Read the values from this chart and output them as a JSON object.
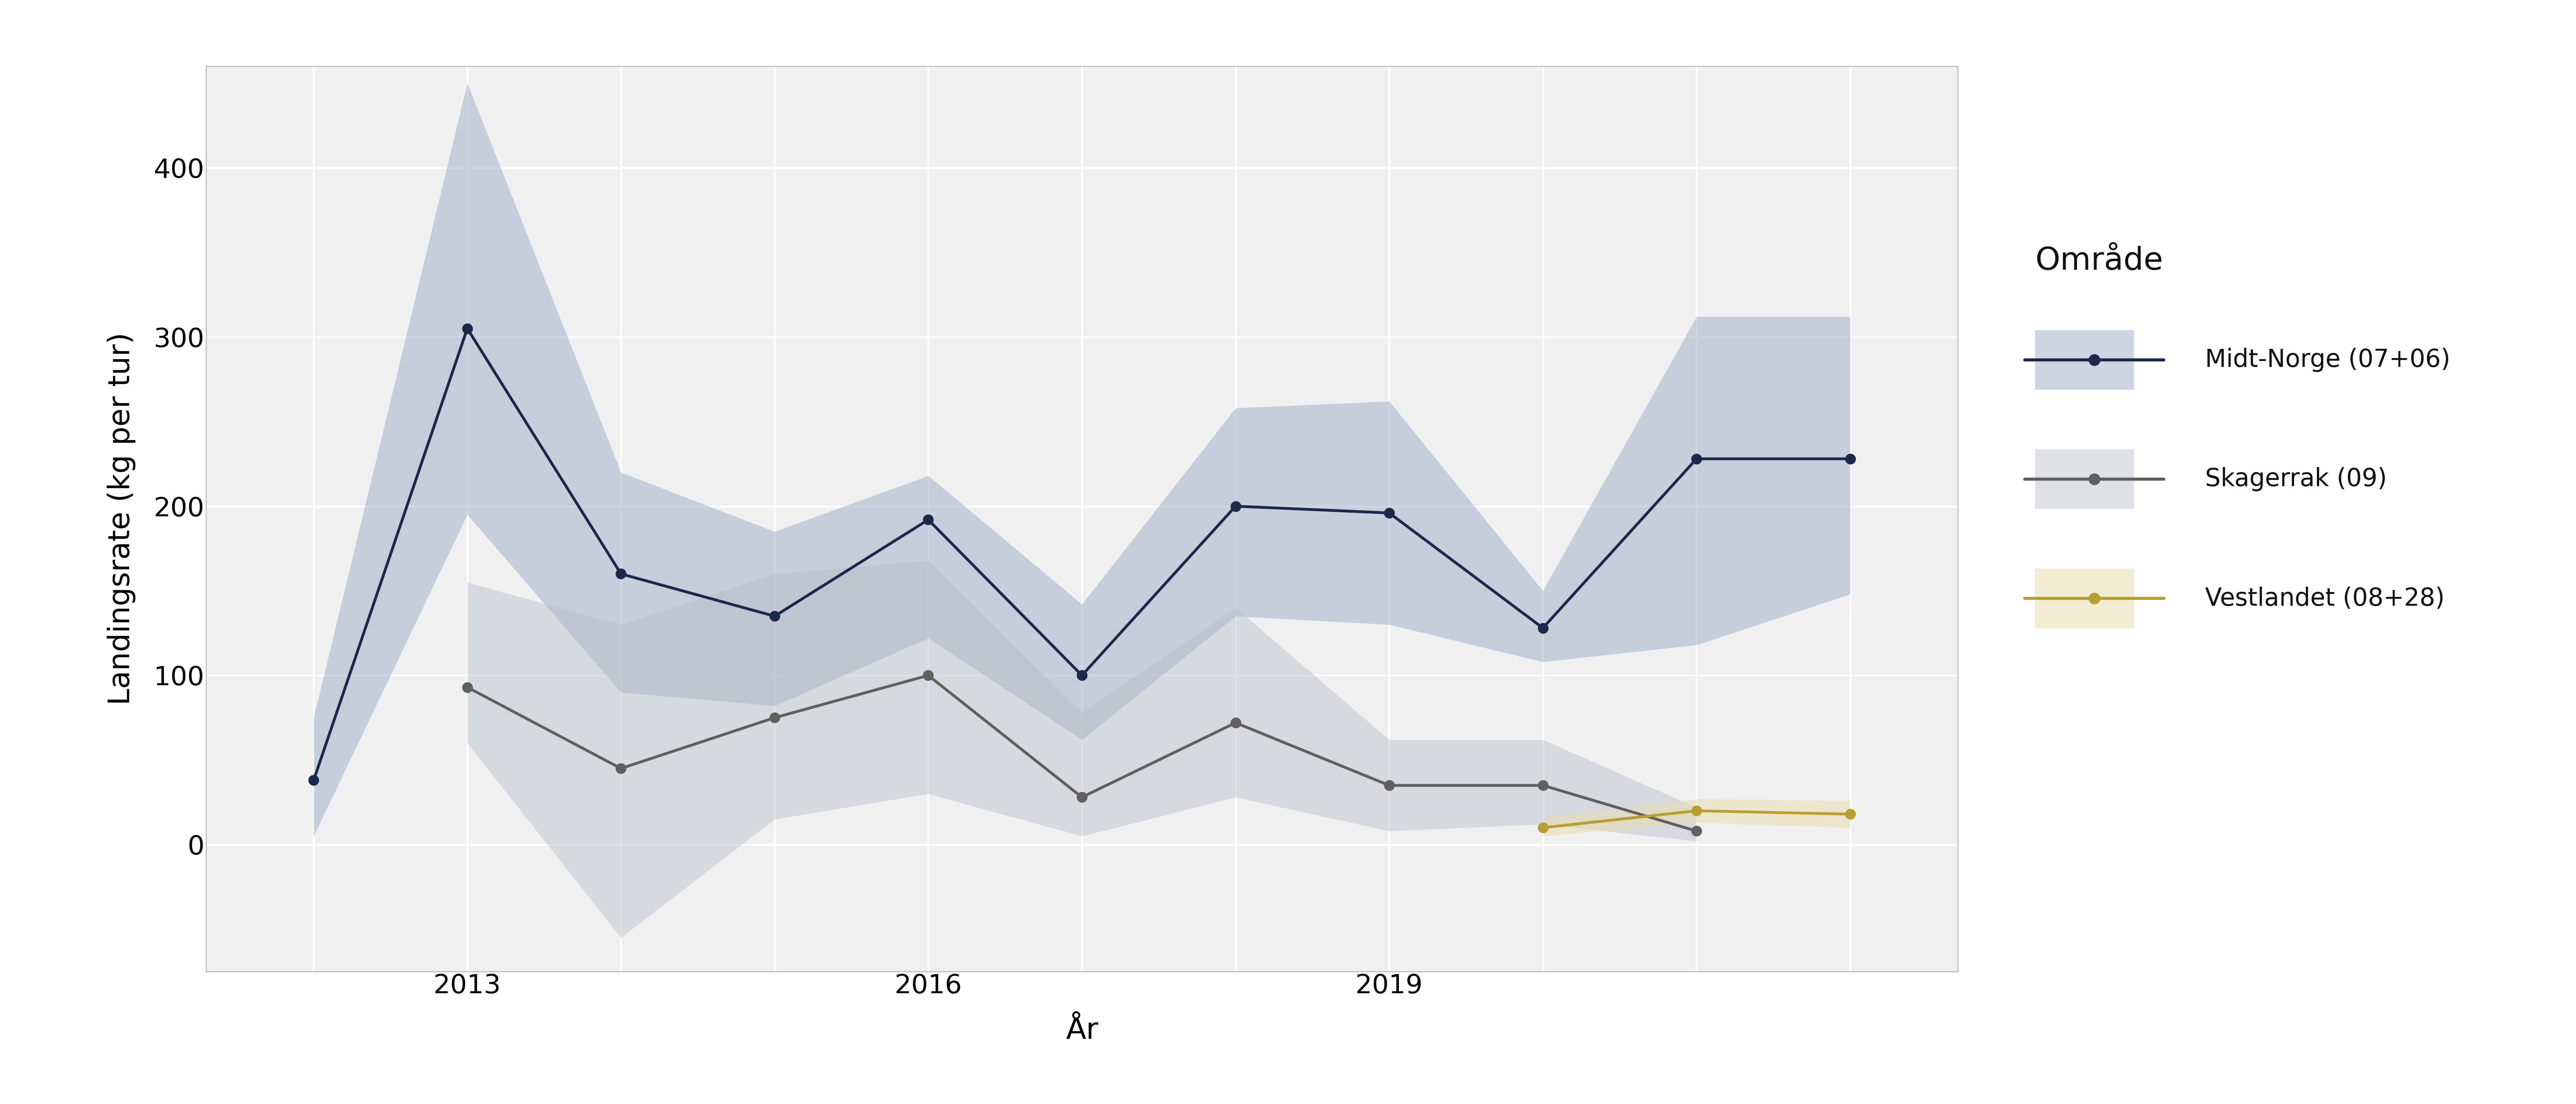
{
  "xlabel": "År",
  "ylabel": "Landingsrate (kg per tur)",
  "legend_title": "Område",
  "background_color": "#ffffff",
  "panel_background": "#f0f0f0",
  "grid_color": "#ffffff",
  "midt_norge": {
    "label": "Midt-Norge (07+06)",
    "color": "#1b2a4a",
    "fill_color": "#9dadc8",
    "fill_alpha": 0.5,
    "years": [
      2012,
      2013,
      2014,
      2015,
      2016,
      2017,
      2018,
      2019,
      2020,
      2021,
      2022
    ],
    "values": [
      38,
      305,
      160,
      135,
      192,
      100,
      200,
      196,
      128,
      228,
      228
    ],
    "lower": [
      5,
      195,
      90,
      82,
      122,
      62,
      135,
      130,
      108,
      118,
      148
    ],
    "upper": [
      75,
      450,
      220,
      185,
      218,
      142,
      258,
      262,
      150,
      312,
      312
    ]
  },
  "skagerrak": {
    "label": "Skagerrak (09)",
    "color": "#606060",
    "fill_color": "#b8bec8",
    "fill_alpha": 0.45,
    "years": [
      2013,
      2014,
      2015,
      2016,
      2017,
      2018,
      2019,
      2020,
      2021
    ],
    "values": [
      93,
      45,
      75,
      100,
      28,
      72,
      35,
      35,
      8
    ],
    "lower": [
      60,
      -55,
      15,
      30,
      5,
      28,
      8,
      12,
      2
    ],
    "upper": [
      155,
      130,
      160,
      168,
      78,
      140,
      62,
      62,
      22
    ]
  },
  "vestlandet": {
    "label": "Vestlandet (08+28)",
    "color": "#b8a030",
    "fill_color": "#e8ddb0",
    "fill_alpha": 0.55,
    "years": [
      2020,
      2021,
      2022
    ],
    "values": [
      10,
      20,
      18
    ],
    "lower": [
      5,
      13,
      10
    ],
    "upper": [
      16,
      27,
      26
    ]
  },
  "xlim": [
    2011.3,
    2022.7
  ],
  "ylim": [
    -75,
    460
  ],
  "yticks": [
    0,
    100,
    200,
    300,
    400
  ],
  "xticks": [
    2013,
    2016,
    2019
  ],
  "minor_xticks": [
    2012,
    2014,
    2015,
    2017,
    2018,
    2020,
    2021,
    2022
  ]
}
